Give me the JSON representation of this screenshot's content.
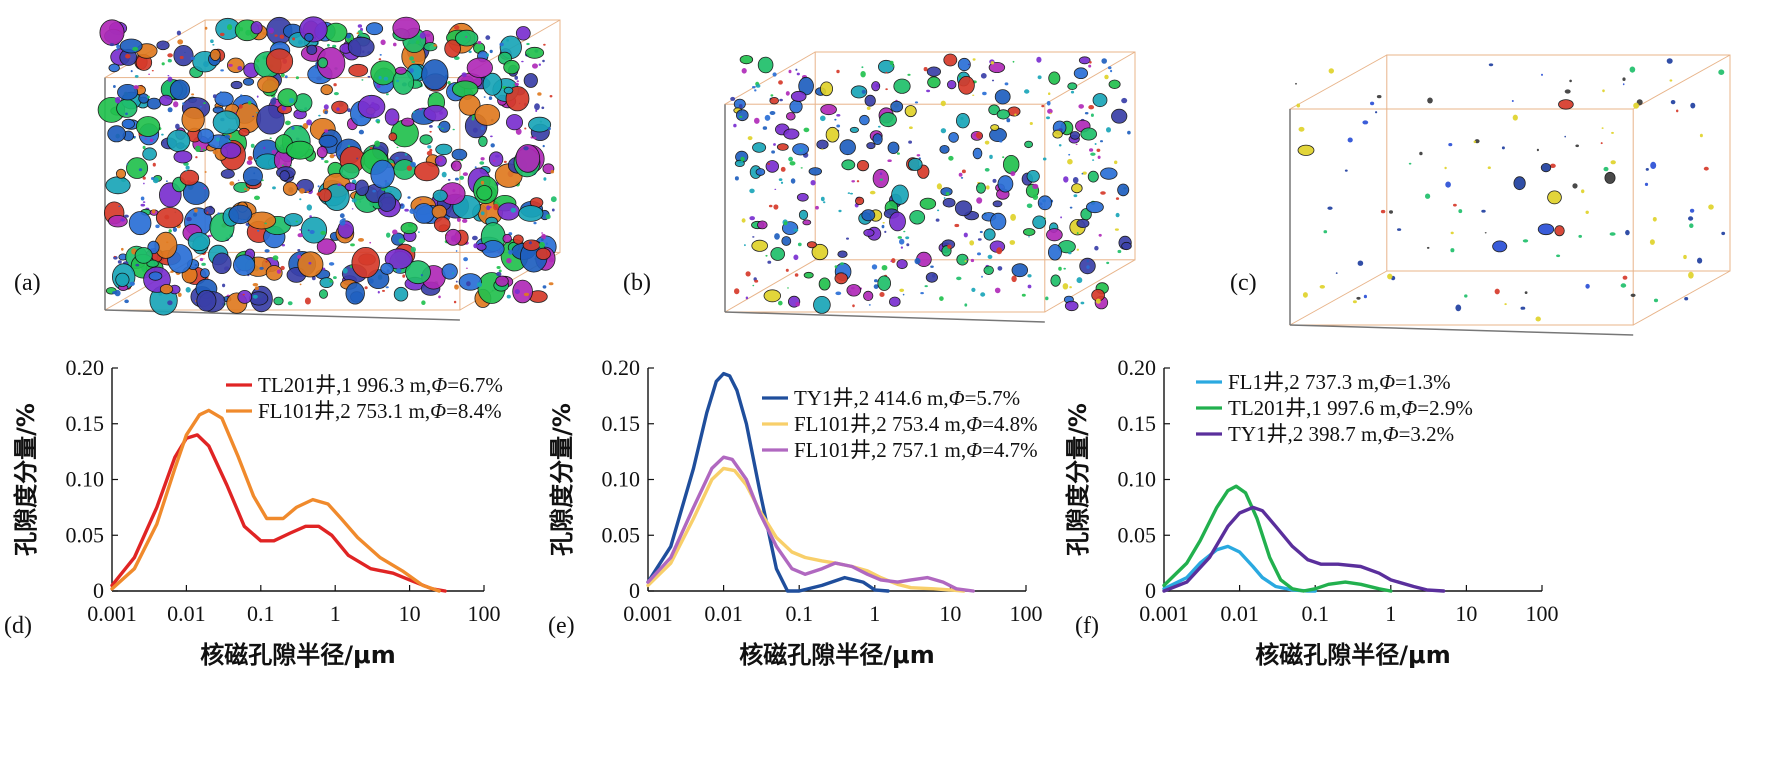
{
  "panels_top": [
    {
      "letter": "(a)",
      "density": 1.0,
      "palette": [
        "#1f5fbf",
        "#2a6fd6",
        "#7a2fd0",
        "#1fbf6a",
        "#1aa5b8",
        "#d63a2a",
        "#e07a20",
        "#22c14e",
        "#3a3fa8",
        "#b02ab8"
      ]
    },
    {
      "letter": "(b)",
      "density": 0.45,
      "palette": [
        "#1f5fbf",
        "#2a6fd6",
        "#7a2fd0",
        "#1fbf6a",
        "#1aa5b8",
        "#d63a2a",
        "#e0d22a",
        "#22c14e",
        "#3a3fa8",
        "#b02ab8"
      ]
    },
    {
      "letter": "(c)",
      "density": 0.06,
      "palette": [
        "#1f3f9f",
        "#2a4fd6",
        "#3a3a3a",
        "#1fbf6a",
        "#e0d22a",
        "#d63a2a"
      ]
    }
  ],
  "chart_data": [
    {
      "type": "line",
      "panel": "(d)",
      "xlabel": "核磁孔隙半径/μm",
      "ylabel": "孔隙度分量/%",
      "x_scale": "log",
      "xlim": [
        0.001,
        100
      ],
      "ylim": [
        0,
        0.2
      ],
      "x_ticks": [
        "0.001",
        "0.01",
        "0.1",
        "1",
        "10",
        "100"
      ],
      "y_ticks": [
        "0",
        "0.05",
        "0.10",
        "0.15",
        "0.20"
      ],
      "legend_position": "top-right",
      "series": [
        {
          "name_main": "TL201井,1 996.3 m,",
          "phi_symbol": "Φ",
          "name_value": "=6.7%",
          "color": "#e02424",
          "x": [
            0.001,
            0.002,
            0.004,
            0.007,
            0.01,
            0.014,
            0.02,
            0.035,
            0.06,
            0.1,
            0.15,
            0.25,
            0.4,
            0.6,
            0.9,
            1.5,
            3,
            6,
            10,
            20,
            30
          ],
          "y": [
            0.005,
            0.03,
            0.075,
            0.12,
            0.137,
            0.14,
            0.13,
            0.095,
            0.058,
            0.045,
            0.045,
            0.052,
            0.058,
            0.058,
            0.05,
            0.032,
            0.02,
            0.016,
            0.01,
            0.002,
            0
          ]
        },
        {
          "name_main": "FL101井,2 753.1 m,",
          "phi_symbol": "Φ",
          "name_value": "=8.4%",
          "color": "#f08a2c",
          "x": [
            0.001,
            0.002,
            0.004,
            0.007,
            0.01,
            0.015,
            0.02,
            0.03,
            0.05,
            0.08,
            0.12,
            0.2,
            0.3,
            0.5,
            0.8,
            1.2,
            2,
            4,
            8,
            15,
            25
          ],
          "y": [
            0.002,
            0.02,
            0.06,
            0.11,
            0.14,
            0.158,
            0.162,
            0.155,
            0.12,
            0.085,
            0.065,
            0.065,
            0.075,
            0.082,
            0.078,
            0.065,
            0.048,
            0.03,
            0.018,
            0.005,
            0
          ]
        }
      ]
    },
    {
      "type": "line",
      "panel": "(e)",
      "xlabel": "核磁孔隙半径/μm",
      "ylabel": "孔隙度分量/%",
      "x_scale": "log",
      "xlim": [
        0.001,
        100
      ],
      "ylim": [
        0,
        0.2
      ],
      "x_ticks": [
        "0.001",
        "0.01",
        "0.1",
        "1",
        "10",
        "100"
      ],
      "y_ticks": [
        "0",
        "0.05",
        "0.10",
        "0.15",
        "0.20"
      ],
      "legend_position": "top-right",
      "series": [
        {
          "name_main": "TY1井,2 414.6 m,",
          "phi_symbol": "Φ",
          "name_value": "=5.7%",
          "color": "#1f4e9c",
          "x": [
            0.001,
            0.002,
            0.004,
            0.006,
            0.008,
            0.01,
            0.012,
            0.015,
            0.02,
            0.03,
            0.05,
            0.07,
            0.1,
            0.2,
            0.4,
            0.7,
            1,
            1.5
          ],
          "y": [
            0.008,
            0.04,
            0.11,
            0.16,
            0.188,
            0.195,
            0.193,
            0.18,
            0.15,
            0.09,
            0.02,
            0,
            0,
            0.005,
            0.012,
            0.008,
            0.001,
            0
          ]
        },
        {
          "name_main": "FL101井,2 753.4 m,",
          "phi_symbol": "Φ",
          "name_value": "=4.8%",
          "color": "#f8cf6a",
          "x": [
            0.001,
            0.002,
            0.004,
            0.007,
            0.01,
            0.014,
            0.02,
            0.03,
            0.05,
            0.08,
            0.12,
            0.2,
            0.3,
            0.5,
            0.8,
            1.2,
            2,
            3,
            6,
            10,
            15
          ],
          "y": [
            0.005,
            0.025,
            0.065,
            0.1,
            0.11,
            0.108,
            0.095,
            0.072,
            0.048,
            0.035,
            0.03,
            0.027,
            0.025,
            0.022,
            0.018,
            0.012,
            0.006,
            0.003,
            0.002,
            0.001,
            0
          ]
        },
        {
          "name_main": "FL101井,2 757.1 m,",
          "phi_symbol": "Φ",
          "name_value": "=4.7%",
          "color": "#b068c0",
          "x": [
            0.001,
            0.002,
            0.004,
            0.007,
            0.01,
            0.013,
            0.02,
            0.03,
            0.05,
            0.08,
            0.12,
            0.2,
            0.3,
            0.5,
            0.8,
            1.2,
            2,
            3,
            5,
            8,
            12,
            20
          ],
          "y": [
            0.008,
            0.03,
            0.075,
            0.11,
            0.12,
            0.118,
            0.1,
            0.07,
            0.04,
            0.02,
            0.015,
            0.02,
            0.025,
            0.022,
            0.015,
            0.01,
            0.008,
            0.01,
            0.012,
            0.008,
            0.002,
            0
          ]
        }
      ]
    },
    {
      "type": "line",
      "panel": "(f)",
      "xlabel": "核磁孔隙半径/μm",
      "ylabel": "孔隙度分量/%",
      "x_scale": "log",
      "xlim": [
        0.001,
        100
      ],
      "ylim": [
        0,
        0.2
      ],
      "x_ticks": [
        "0.001",
        "0.01",
        "0.1",
        "1",
        "10",
        "100"
      ],
      "y_ticks": [
        "0",
        "0.05",
        "0.10",
        "0.15",
        "0.20"
      ],
      "legend_position": "top-right",
      "series": [
        {
          "name_main": "FL1井,2 737.3 m,",
          "phi_symbol": "Φ",
          "name_value": "=1.3%",
          "color": "#2aa9e0",
          "x": [
            0.001,
            0.002,
            0.003,
            0.005,
            0.007,
            0.01,
            0.015,
            0.02,
            0.03,
            0.05,
            0.08,
            0.1
          ],
          "y": [
            0.002,
            0.012,
            0.025,
            0.037,
            0.04,
            0.035,
            0.022,
            0.012,
            0.004,
            0.001,
            0,
            0
          ]
        },
        {
          "name_main": "TL201井,1 997.6 m,",
          "phi_symbol": "Φ",
          "name_value": "=2.9%",
          "color": "#22b04e",
          "x": [
            0.001,
            0.002,
            0.003,
            0.005,
            0.007,
            0.009,
            0.012,
            0.017,
            0.025,
            0.035,
            0.05,
            0.07,
            0.1,
            0.15,
            0.25,
            0.4,
            0.7,
            1
          ],
          "y": [
            0.005,
            0.025,
            0.045,
            0.075,
            0.09,
            0.094,
            0.088,
            0.065,
            0.03,
            0.01,
            0.002,
            0,
            0.002,
            0.006,
            0.008,
            0.006,
            0.002,
            0
          ]
        },
        {
          "name_main": "TY1井,2 398.7 m,",
          "phi_symbol": "Φ",
          "name_value": "=3.2%",
          "color": "#5a2f9c",
          "x": [
            0.001,
            0.002,
            0.004,
            0.007,
            0.01,
            0.015,
            0.02,
            0.03,
            0.05,
            0.08,
            0.12,
            0.2,
            0.4,
            0.7,
            1,
            2,
            3,
            5
          ],
          "y": [
            0,
            0.008,
            0.03,
            0.058,
            0.07,
            0.075,
            0.072,
            0.058,
            0.04,
            0.028,
            0.024,
            0.024,
            0.022,
            0.016,
            0.01,
            0.004,
            0.001,
            0
          ]
        }
      ]
    }
  ]
}
